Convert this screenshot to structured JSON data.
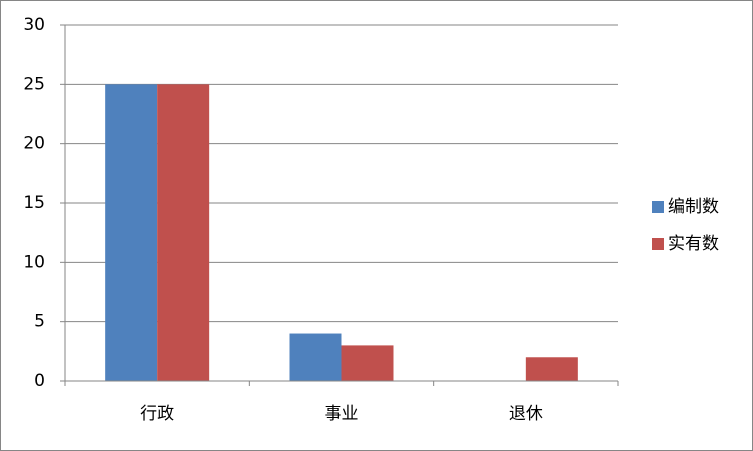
{
  "chart_data": {
    "type": "bar",
    "categories": [
      "行政",
      "事业",
      "退休"
    ],
    "series": [
      {
        "name": "编制数",
        "color": "#4f81bd",
        "values": [
          25,
          4,
          0
        ]
      },
      {
        "name": "实有数",
        "color": "#c0504d",
        "values": [
          25,
          3,
          2
        ]
      }
    ],
    "ylim": [
      0,
      30
    ],
    "yticks": [
      0,
      5,
      10,
      15,
      20,
      25,
      30
    ],
    "grid": true,
    "legend": "right"
  }
}
